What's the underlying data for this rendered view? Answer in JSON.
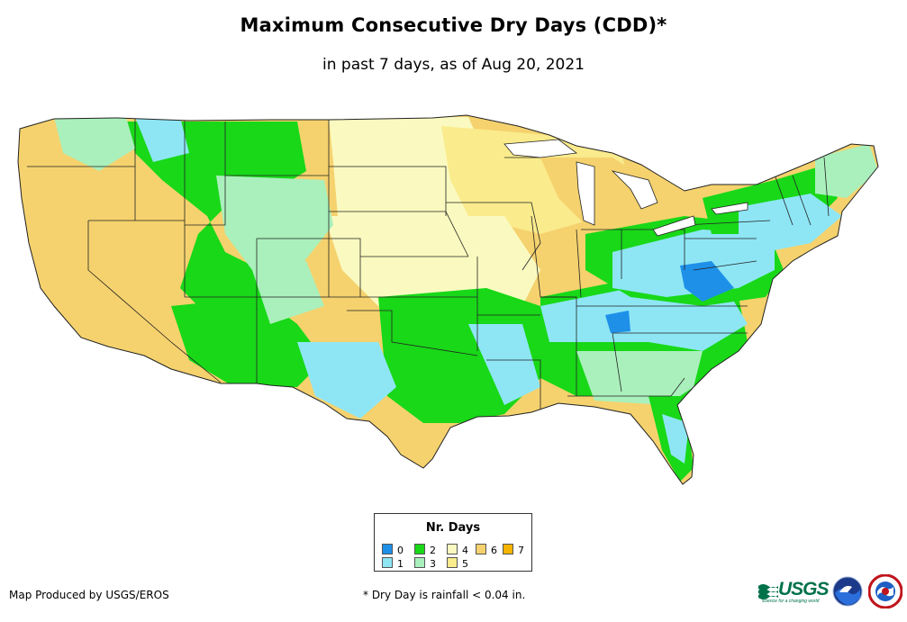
{
  "title": "Maximum Consecutive Dry Days (CDD)*",
  "subtitle": "in past 7 days, as of Aug 20, 2021",
  "legend": {
    "title": "Nr. Days",
    "items": [
      {
        "label": "0",
        "color": "#1e90e8"
      },
      {
        "label": "1",
        "color": "#8ee6f5"
      },
      {
        "label": "2",
        "color": "#18d818"
      },
      {
        "label": "3",
        "color": "#aaf0bc"
      },
      {
        "label": "4",
        "color": "#fafac0"
      },
      {
        "label": "5",
        "color": "#faeb8c"
      },
      {
        "label": "6",
        "color": "#f5d26e"
      },
      {
        "label": "7",
        "color": "#f5b400"
      }
    ]
  },
  "credit": "Map Produced by USGS/EROS",
  "footnote": "* Dry Day is rainfall < 0.04 in.",
  "logos": {
    "usgs": "USGS",
    "usgs_tagline": "science for a changing world"
  }
}
